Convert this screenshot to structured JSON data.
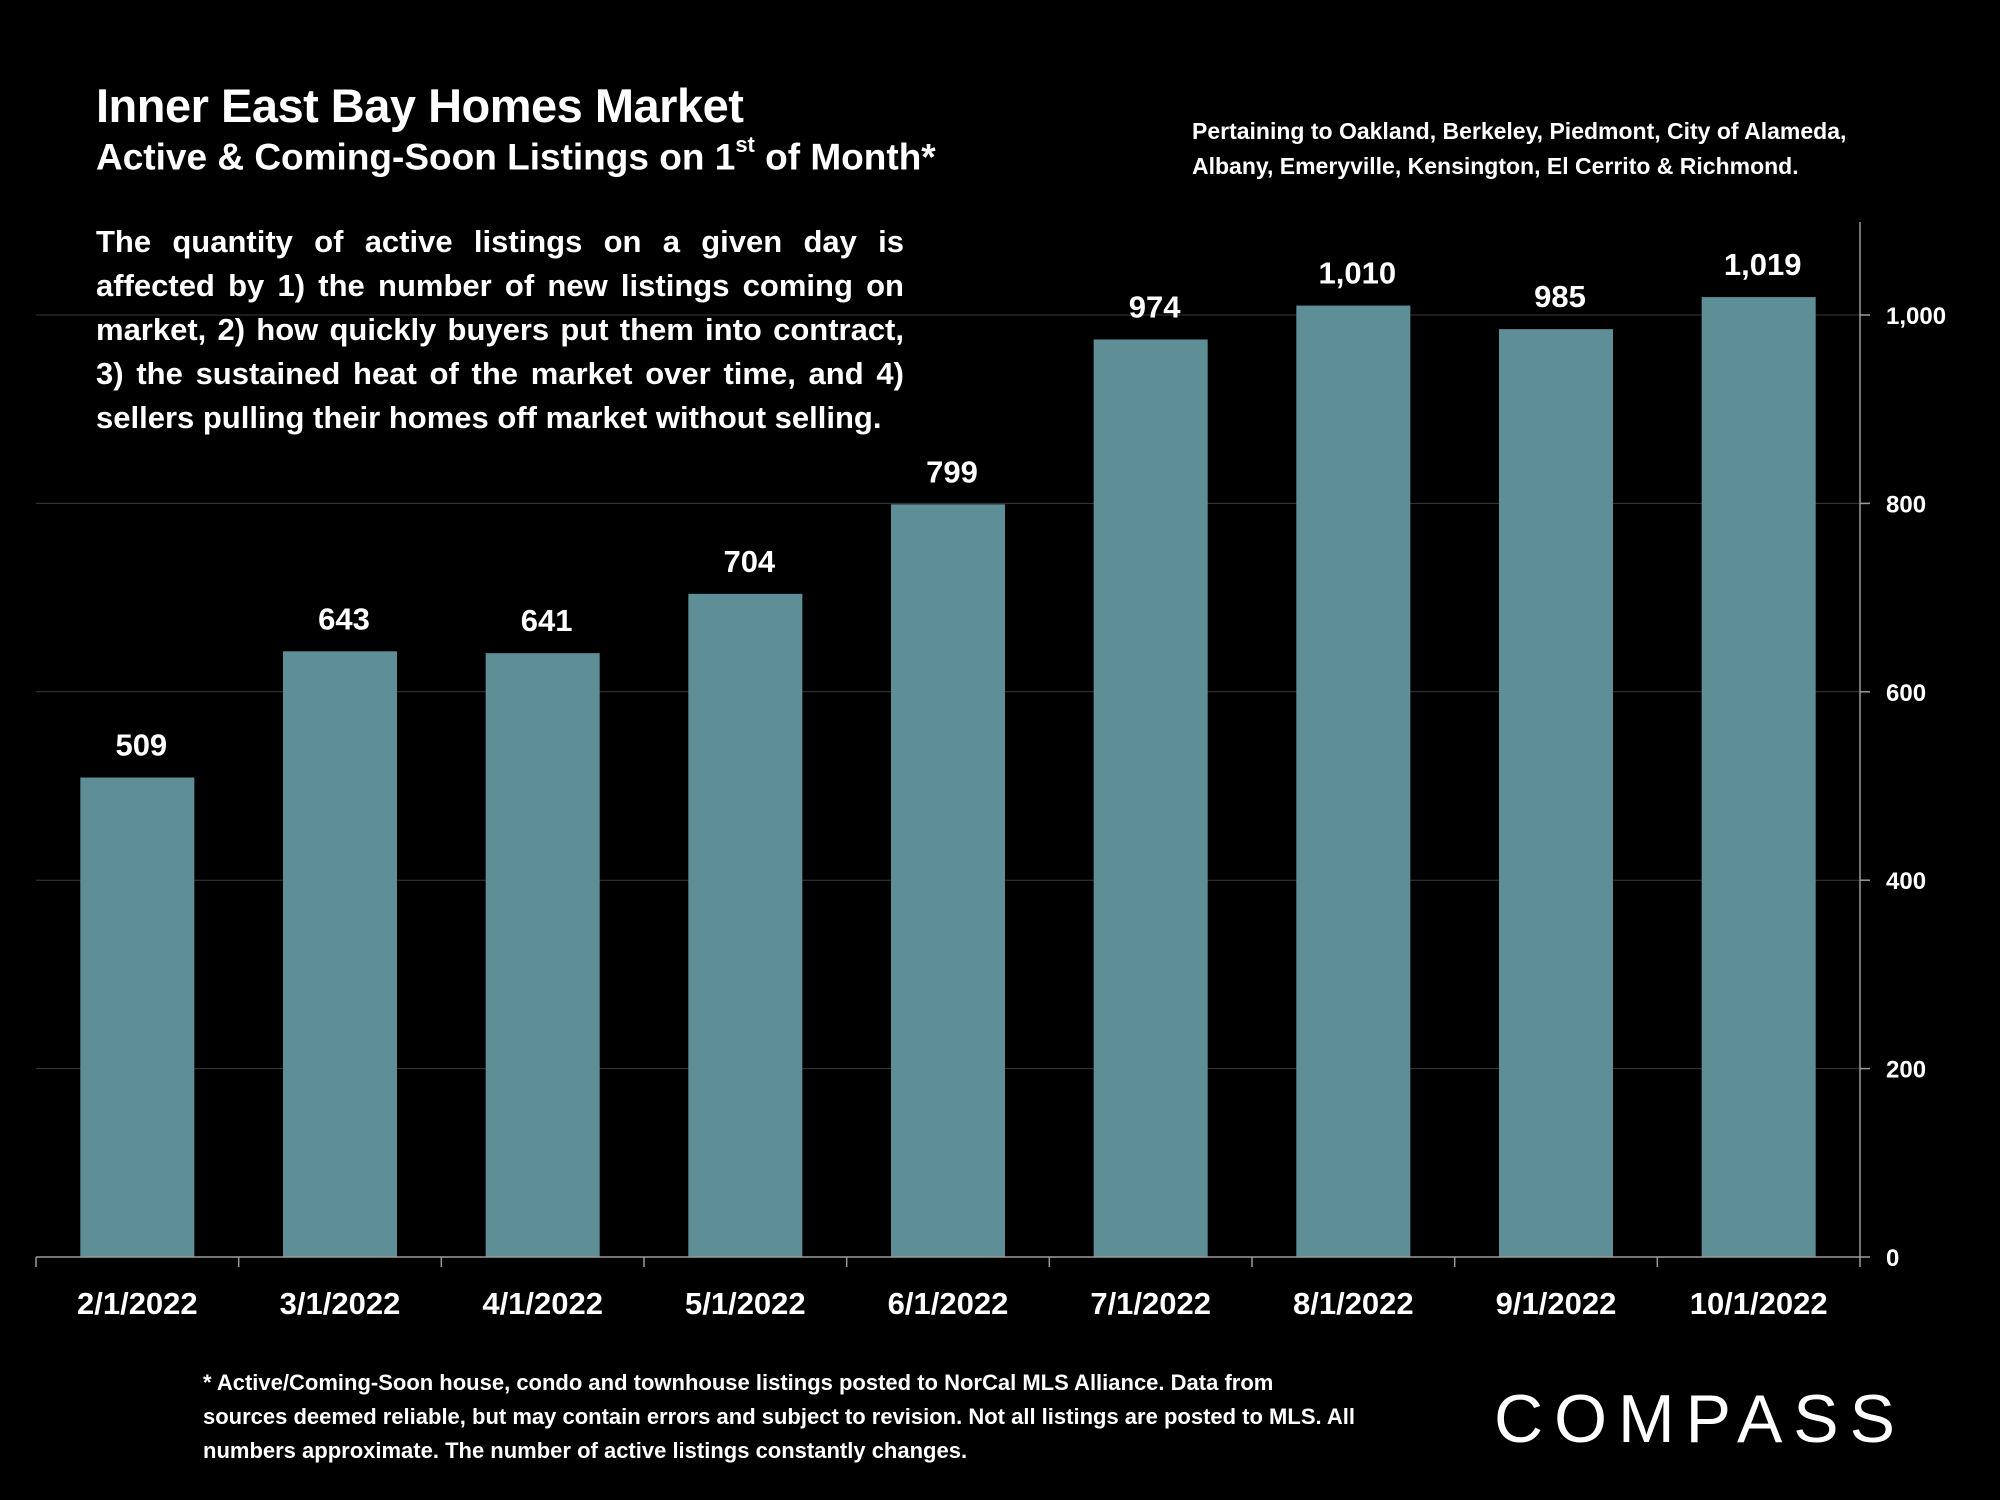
{
  "header": {
    "title": "Inner East Bay Homes Market",
    "subtitle_main": "Active & Coming-Soon Listings on 1",
    "subtitle_sup": "st",
    "subtitle_end": " of Month*",
    "pertaining_line1": "Pertaining to Oakland, Berkeley, Piedmont, City of Alameda,",
    "pertaining_line2": "Albany, Emeryville, Kensington, El Cerrito & Richmond."
  },
  "description": "The quantity of active listings on a given day is affected by 1) the number of new listings coming on market, 2) how quickly buyers put them into contract, 3) the sustained heat of the market over time, and 4) sellers pulling their homes off market without selling.",
  "footnote": "* Active/Coming-Soon house, condo and townhouse listings posted to NorCal MLS Alliance.  Data from sources deemed reliable, but may contain errors and subject to revision.  Not all listings are posted to MLS. All numbers approximate. The number of active listings constantly changes.",
  "logo": "COMPASS",
  "colors": {
    "bar": "#5F8F96",
    "background": "#000000"
  },
  "chart_data": {
    "type": "bar",
    "categories": [
      "2/1/2022",
      "3/1/2022",
      "4/1/2022",
      "5/1/2022",
      "6/1/2022",
      "7/1/2022",
      "8/1/2022",
      "9/1/2022",
      "10/1/2022"
    ],
    "values": [
      509,
      643,
      641,
      704,
      799,
      974,
      1010,
      985,
      1019
    ],
    "value_labels": [
      "509",
      "643",
      "641",
      "704",
      "799",
      "974",
      "1,010",
      "985",
      "1,019"
    ],
    "yticks": [
      0,
      200,
      400,
      600,
      800,
      1000
    ],
    "ytick_labels": [
      "0",
      "200",
      "400",
      "600",
      "800",
      "1,000"
    ],
    "ylim": [
      0,
      1100
    ],
    "y_axis_side": "right",
    "grid": true
  }
}
